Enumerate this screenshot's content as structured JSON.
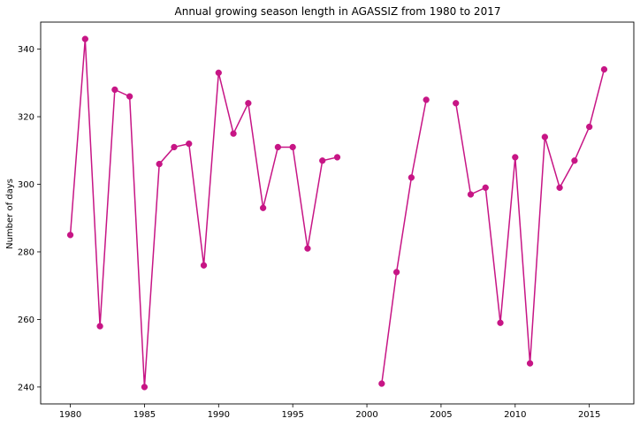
{
  "chart_data": {
    "type": "line",
    "title": "Annual growing season length in AGASSIZ from 1980 to 2017",
    "xlabel": "",
    "ylabel": "Number of days",
    "xlim": [
      1978,
      2018
    ],
    "ylim": [
      235,
      348
    ],
    "xticks": [
      1980,
      1985,
      1990,
      1995,
      2000,
      2005,
      2010,
      2015
    ],
    "yticks": [
      240,
      260,
      280,
      300,
      320,
      340
    ],
    "grid": false,
    "legend": "none",
    "series": [
      {
        "color": "#c71585",
        "marker": "circle",
        "points": [
          [
            1980,
            285
          ],
          [
            1981,
            343
          ],
          [
            1982,
            258
          ],
          [
            1983,
            328
          ],
          [
            1984,
            326
          ],
          [
            1985,
            240
          ],
          [
            1986,
            306
          ],
          [
            1987,
            311
          ],
          [
            1988,
            312
          ],
          [
            1989,
            276
          ],
          [
            1990,
            333
          ],
          [
            1991,
            315
          ],
          [
            1992,
            324
          ],
          [
            1993,
            293
          ],
          [
            1994,
            311
          ],
          [
            1995,
            311
          ],
          [
            1996,
            281
          ],
          [
            1997,
            307
          ],
          [
            1998,
            308
          ],
          [
            1999,
            null
          ],
          [
            2000,
            null
          ],
          [
            2001,
            241
          ],
          [
            2002,
            274
          ],
          [
            2003,
            302
          ],
          [
            2004,
            325
          ],
          [
            2005,
            null
          ],
          [
            2006,
            324
          ],
          [
            2007,
            297
          ],
          [
            2008,
            299
          ],
          [
            2009,
            259
          ],
          [
            2010,
            308
          ],
          [
            2011,
            247
          ],
          [
            2012,
            314
          ],
          [
            2013,
            299
          ],
          [
            2014,
            307
          ],
          [
            2015,
            317
          ],
          [
            2016,
            334
          ]
        ]
      }
    ]
  }
}
